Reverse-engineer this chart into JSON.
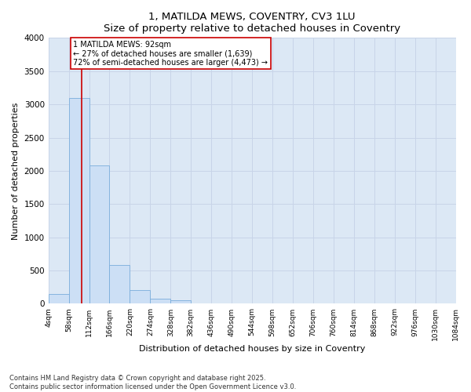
{
  "title": "1, MATILDA MEWS, COVENTRY, CV3 1LU",
  "subtitle": "Size of property relative to detached houses in Coventry",
  "xlabel": "Distribution of detached houses by size in Coventry",
  "ylabel": "Number of detached properties",
  "bar_edges": [
    4,
    58,
    112,
    166,
    220,
    274,
    328,
    382,
    436,
    490,
    544,
    598,
    652,
    706,
    760,
    814,
    868,
    922,
    976,
    1030,
    1084
  ],
  "bar_heights": [
    150,
    3100,
    2080,
    580,
    210,
    80,
    55,
    0,
    0,
    0,
    0,
    0,
    0,
    0,
    0,
    0,
    0,
    0,
    0,
    0
  ],
  "bar_color": "#ccdff5",
  "bar_edge_color": "#7aaddb",
  "grid_color": "#c8d4e8",
  "background_color": "#dce8f5",
  "fig_background": "#ffffff",
  "red_line_x": 92,
  "annotation_text": "1 MATILDA MEWS: 92sqm\n← 27% of detached houses are smaller (1,639)\n72% of semi-detached houses are larger (4,473) →",
  "annotation_box_facecolor": "#ffffff",
  "annotation_border_color": "#cc0000",
  "ylim": [
    0,
    4000
  ],
  "yticks": [
    0,
    500,
    1000,
    1500,
    2000,
    2500,
    3000,
    3500,
    4000
  ],
  "footer1": "Contains HM Land Registry data © Crown copyright and database right 2025.",
  "footer2": "Contains public sector information licensed under the Open Government Licence v3.0.",
  "tick_labels": [
    "4sqm",
    "58sqm",
    "112sqm",
    "166sqm",
    "220sqm",
    "274sqm",
    "328sqm",
    "382sqm",
    "436sqm",
    "490sqm",
    "544sqm",
    "598sqm",
    "652sqm",
    "706sqm",
    "760sqm",
    "814sqm",
    "868sqm",
    "922sqm",
    "976sqm",
    "1030sqm",
    "1084sqm"
  ]
}
